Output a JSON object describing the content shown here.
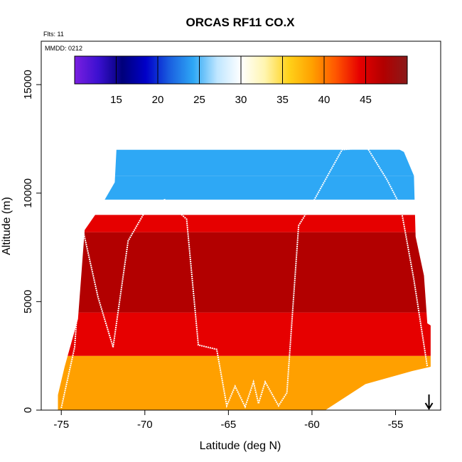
{
  "chart_data": {
    "type": "heatmap",
    "title": "ORCAS RF11 CO.X",
    "annotations": [
      "Flts: 11",
      "MMDD: 0212"
    ],
    "xlabel": "Latitude (deg N)",
    "ylabel": "Altitude (m)",
    "xlim": [
      -76.2,
      -52.3
    ],
    "ylim": [
      0,
      17000
    ],
    "x_ticks": [
      -75,
      -70,
      -65,
      -60,
      -55
    ],
    "y_ticks": [
      0,
      5000,
      10000,
      15000
    ],
    "colorbar": {
      "range": [
        10,
        50
      ],
      "ticks": [
        15,
        20,
        25,
        30,
        35,
        40,
        45
      ],
      "colors": [
        "#7a1fe0",
        "#3b10d0",
        "#00007a",
        "#0000c8",
        "#1a5fe0",
        "#2ea8f5",
        "#bfe6ff",
        "#ffffff",
        "#fff5b0",
        "#ffd21a",
        "#ffa000",
        "#ff5500",
        "#e60000",
        "#b20000",
        "#8a1a1a"
      ]
    },
    "curtain_layers": [
      {
        "alt_min": 0,
        "alt_max": 2500,
        "value": 38
      },
      {
        "alt_min": 2500,
        "alt_max": 4500,
        "value": 43
      },
      {
        "alt_min": 4500,
        "alt_max": 8200,
        "value": 47
      },
      {
        "alt_min": 8200,
        "alt_max": 9000,
        "value": 44
      },
      {
        "alt_min": 9000,
        "alt_max": 9700,
        "value": 31
      },
      {
        "alt_min": 9700,
        "alt_max": 10800,
        "value": 23
      },
      {
        "alt_min": 10800,
        "alt_max": 12000,
        "value": 24
      }
    ],
    "curtain_outline": [
      [
        -75.2,
        0
      ],
      [
        -75.2,
        700
      ],
      [
        -74.8,
        2000
      ],
      [
        -74.0,
        4200
      ],
      [
        -73.6,
        8300
      ],
      [
        -72.7,
        9300
      ],
      [
        -71.8,
        10500
      ],
      [
        -71.7,
        12000
      ],
      [
        -58.2,
        12000
      ],
      [
        -58.1,
        12300
      ],
      [
        -55.5,
        12300
      ],
      [
        -54.5,
        11900
      ],
      [
        -53.9,
        10800
      ],
      [
        -53.8,
        8000
      ],
      [
        -53.3,
        6200
      ],
      [
        -53.1,
        4000
      ],
      [
        -52.9,
        3900
      ],
      [
        -52.9,
        2000
      ],
      [
        -54.0,
        1800
      ],
      [
        -56.8,
        1200
      ],
      [
        -59.2,
        0
      ]
    ],
    "flight_track": [
      [
        -75.0,
        100
      ],
      [
        -74.2,
        2900
      ],
      [
        -73.7,
        8300
      ],
      [
        -72.8,
        5200
      ],
      [
        -71.9,
        2900
      ],
      [
        -71.0,
        7800
      ],
      [
        -69.8,
        9400
      ],
      [
        -68.8,
        9700
      ],
      [
        -67.5,
        8800
      ],
      [
        -66.8,
        3000
      ],
      [
        -65.7,
        2800
      ],
      [
        -65.1,
        200
      ],
      [
        -64.6,
        1100
      ],
      [
        -64.0,
        150
      ],
      [
        -63.5,
        1300
      ],
      [
        -63.2,
        300
      ],
      [
        -62.8,
        1300
      ],
      [
        -62.0,
        200
      ],
      [
        -61.5,
        800
      ],
      [
        -60.8,
        8500
      ],
      [
        -60.0,
        9500
      ],
      [
        -58.2,
        12000
      ],
      [
        -56.7,
        12100
      ],
      [
        -55.5,
        10600
      ],
      [
        -54.7,
        9400
      ],
      [
        -53.9,
        6000
      ],
      [
        -53.1,
        2000
      ]
    ],
    "arrow": {
      "latitude": -53.0,
      "direction": "down"
    }
  }
}
